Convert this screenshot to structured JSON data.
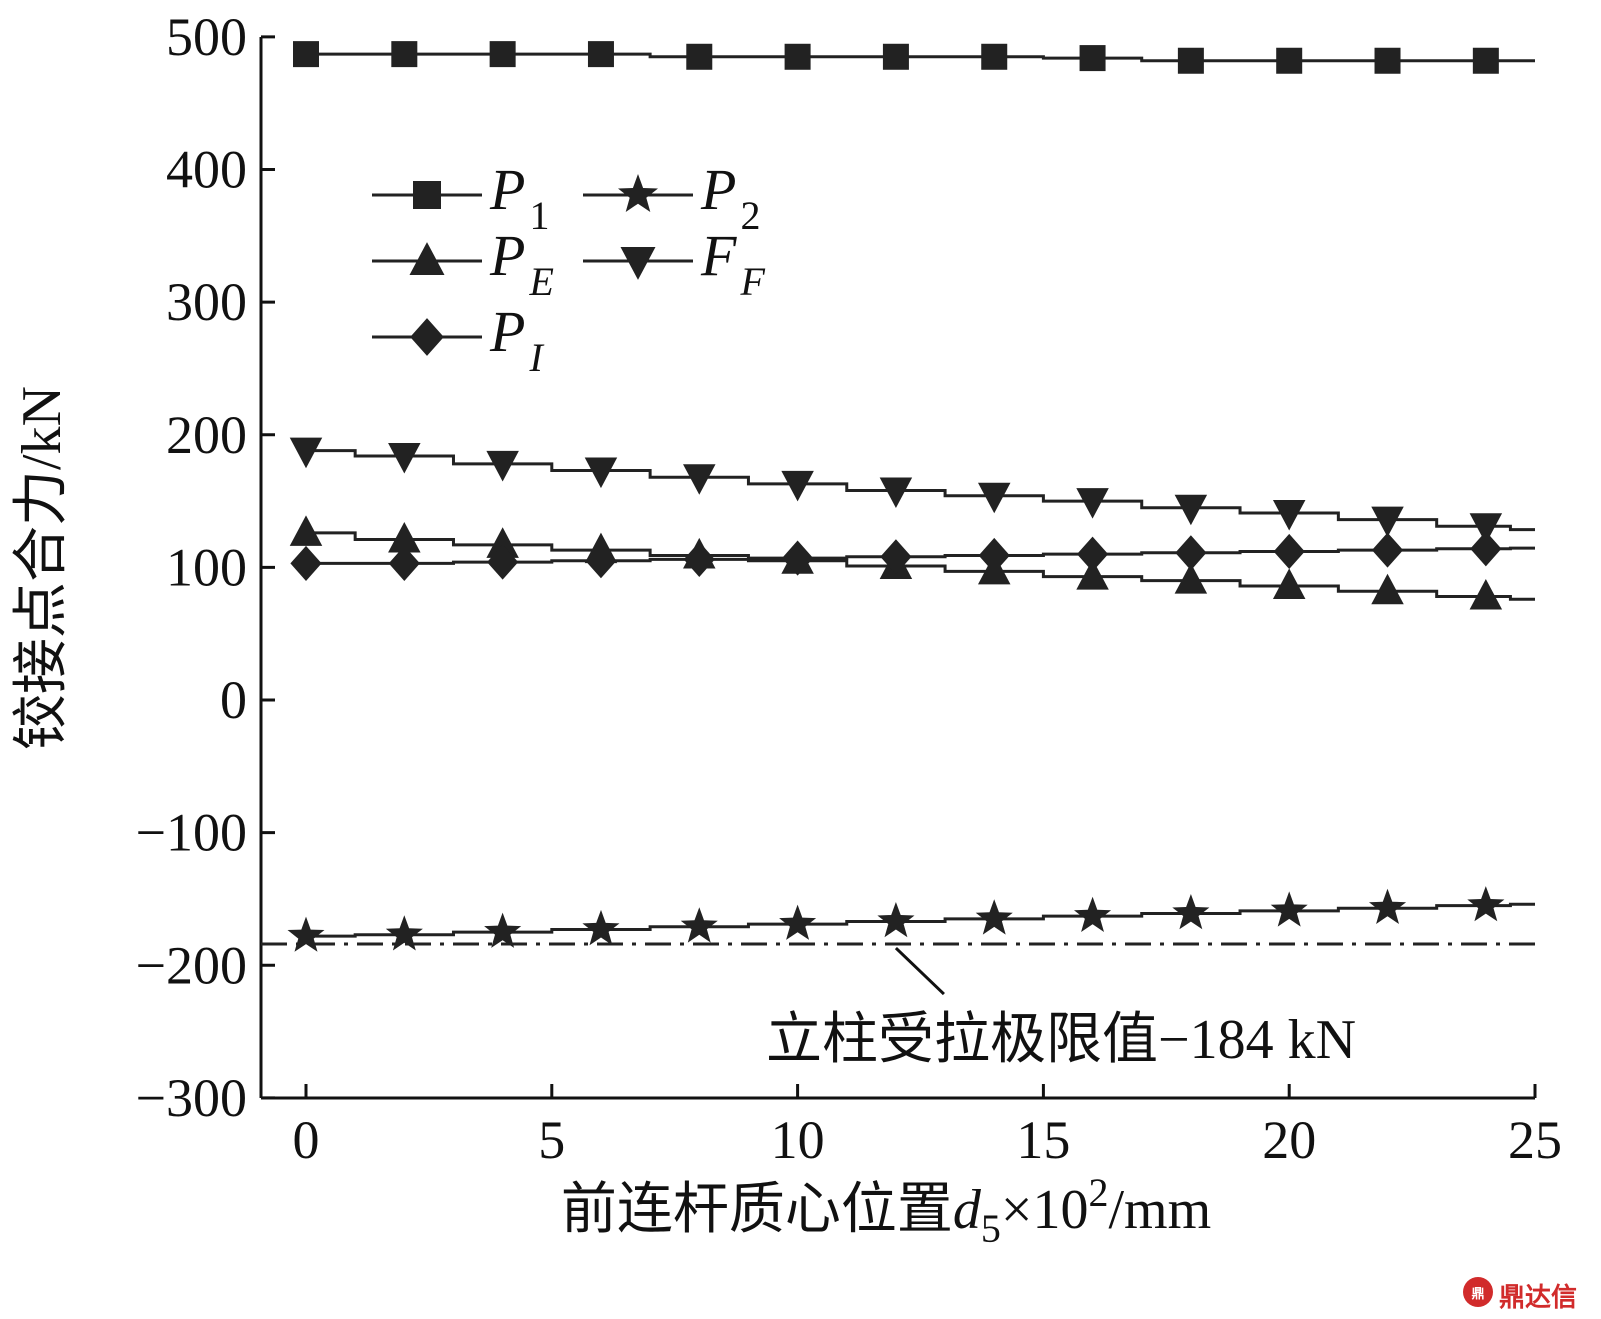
{
  "chart_data": {
    "type": "line",
    "xlabel_prefix": "前连杆质心位置",
    "xlabel_var": "d",
    "xlabel_var_sub": "5",
    "xlabel_suffix_mult": "×10",
    "xlabel_suffix_exp": "2",
    "xlabel_suffix_unit": "/mm",
    "ylabel": "铰接点合力/kN",
    "xlim": [
      0,
      25
    ],
    "ylim": [
      -300,
      500
    ],
    "xticks": [
      0,
      5,
      10,
      15,
      20,
      25
    ],
    "yticks": [
      500,
      400,
      300,
      200,
      100,
      0,
      -100,
      -200,
      -300
    ],
    "ytick_labels": [
      "500",
      "400",
      "300",
      "200",
      "100",
      "0",
      "−100",
      "−200",
      "−300"
    ],
    "x": [
      0,
      2,
      4,
      6,
      8,
      10,
      12,
      14,
      16,
      18,
      20,
      22,
      24
    ],
    "legend_placement": "upper-left",
    "series": [
      {
        "name_main": "P",
        "name_sub": "1",
        "marker": "square",
        "values": [
          487,
          487,
          487,
          487,
          485,
          485,
          485,
          485,
          484,
          482,
          482,
          482,
          482
        ]
      },
      {
        "name_main": "P",
        "name_sub": "2",
        "marker": "star",
        "values": [
          -178,
          -177,
          -175,
          -173,
          -171,
          -169,
          -167,
          -165,
          -163,
          -161,
          -159,
          -157,
          -155
        ]
      },
      {
        "name_main": "P",
        "name_sub": "E",
        "marker": "triangle-up",
        "values": [
          126,
          121,
          117,
          113,
          109,
          105,
          101,
          97,
          93,
          90,
          86,
          82,
          78
        ]
      },
      {
        "name_main": "F",
        "name_sub": "F",
        "marker": "triangle-down",
        "values": [
          188,
          184,
          178,
          173,
          168,
          163,
          158,
          154,
          150,
          145,
          141,
          136,
          131
        ]
      },
      {
        "name_main": "P",
        "name_sub": "I",
        "marker": "diamond",
        "values": [
          103,
          103,
          104,
          105,
          106,
          107,
          108,
          109,
          110,
          111,
          112,
          113,
          114
        ]
      }
    ],
    "reference_line": {
      "value": -184,
      "style": "dash-dot"
    },
    "annotation": {
      "text": "立柱受拉极限值−184 kN",
      "points_to_x": 12
    },
    "colors": {
      "line": "#222222",
      "marker": "#222222"
    }
  },
  "watermark": {
    "icon": "ding-logo-icon",
    "text": "鼎达信"
  }
}
